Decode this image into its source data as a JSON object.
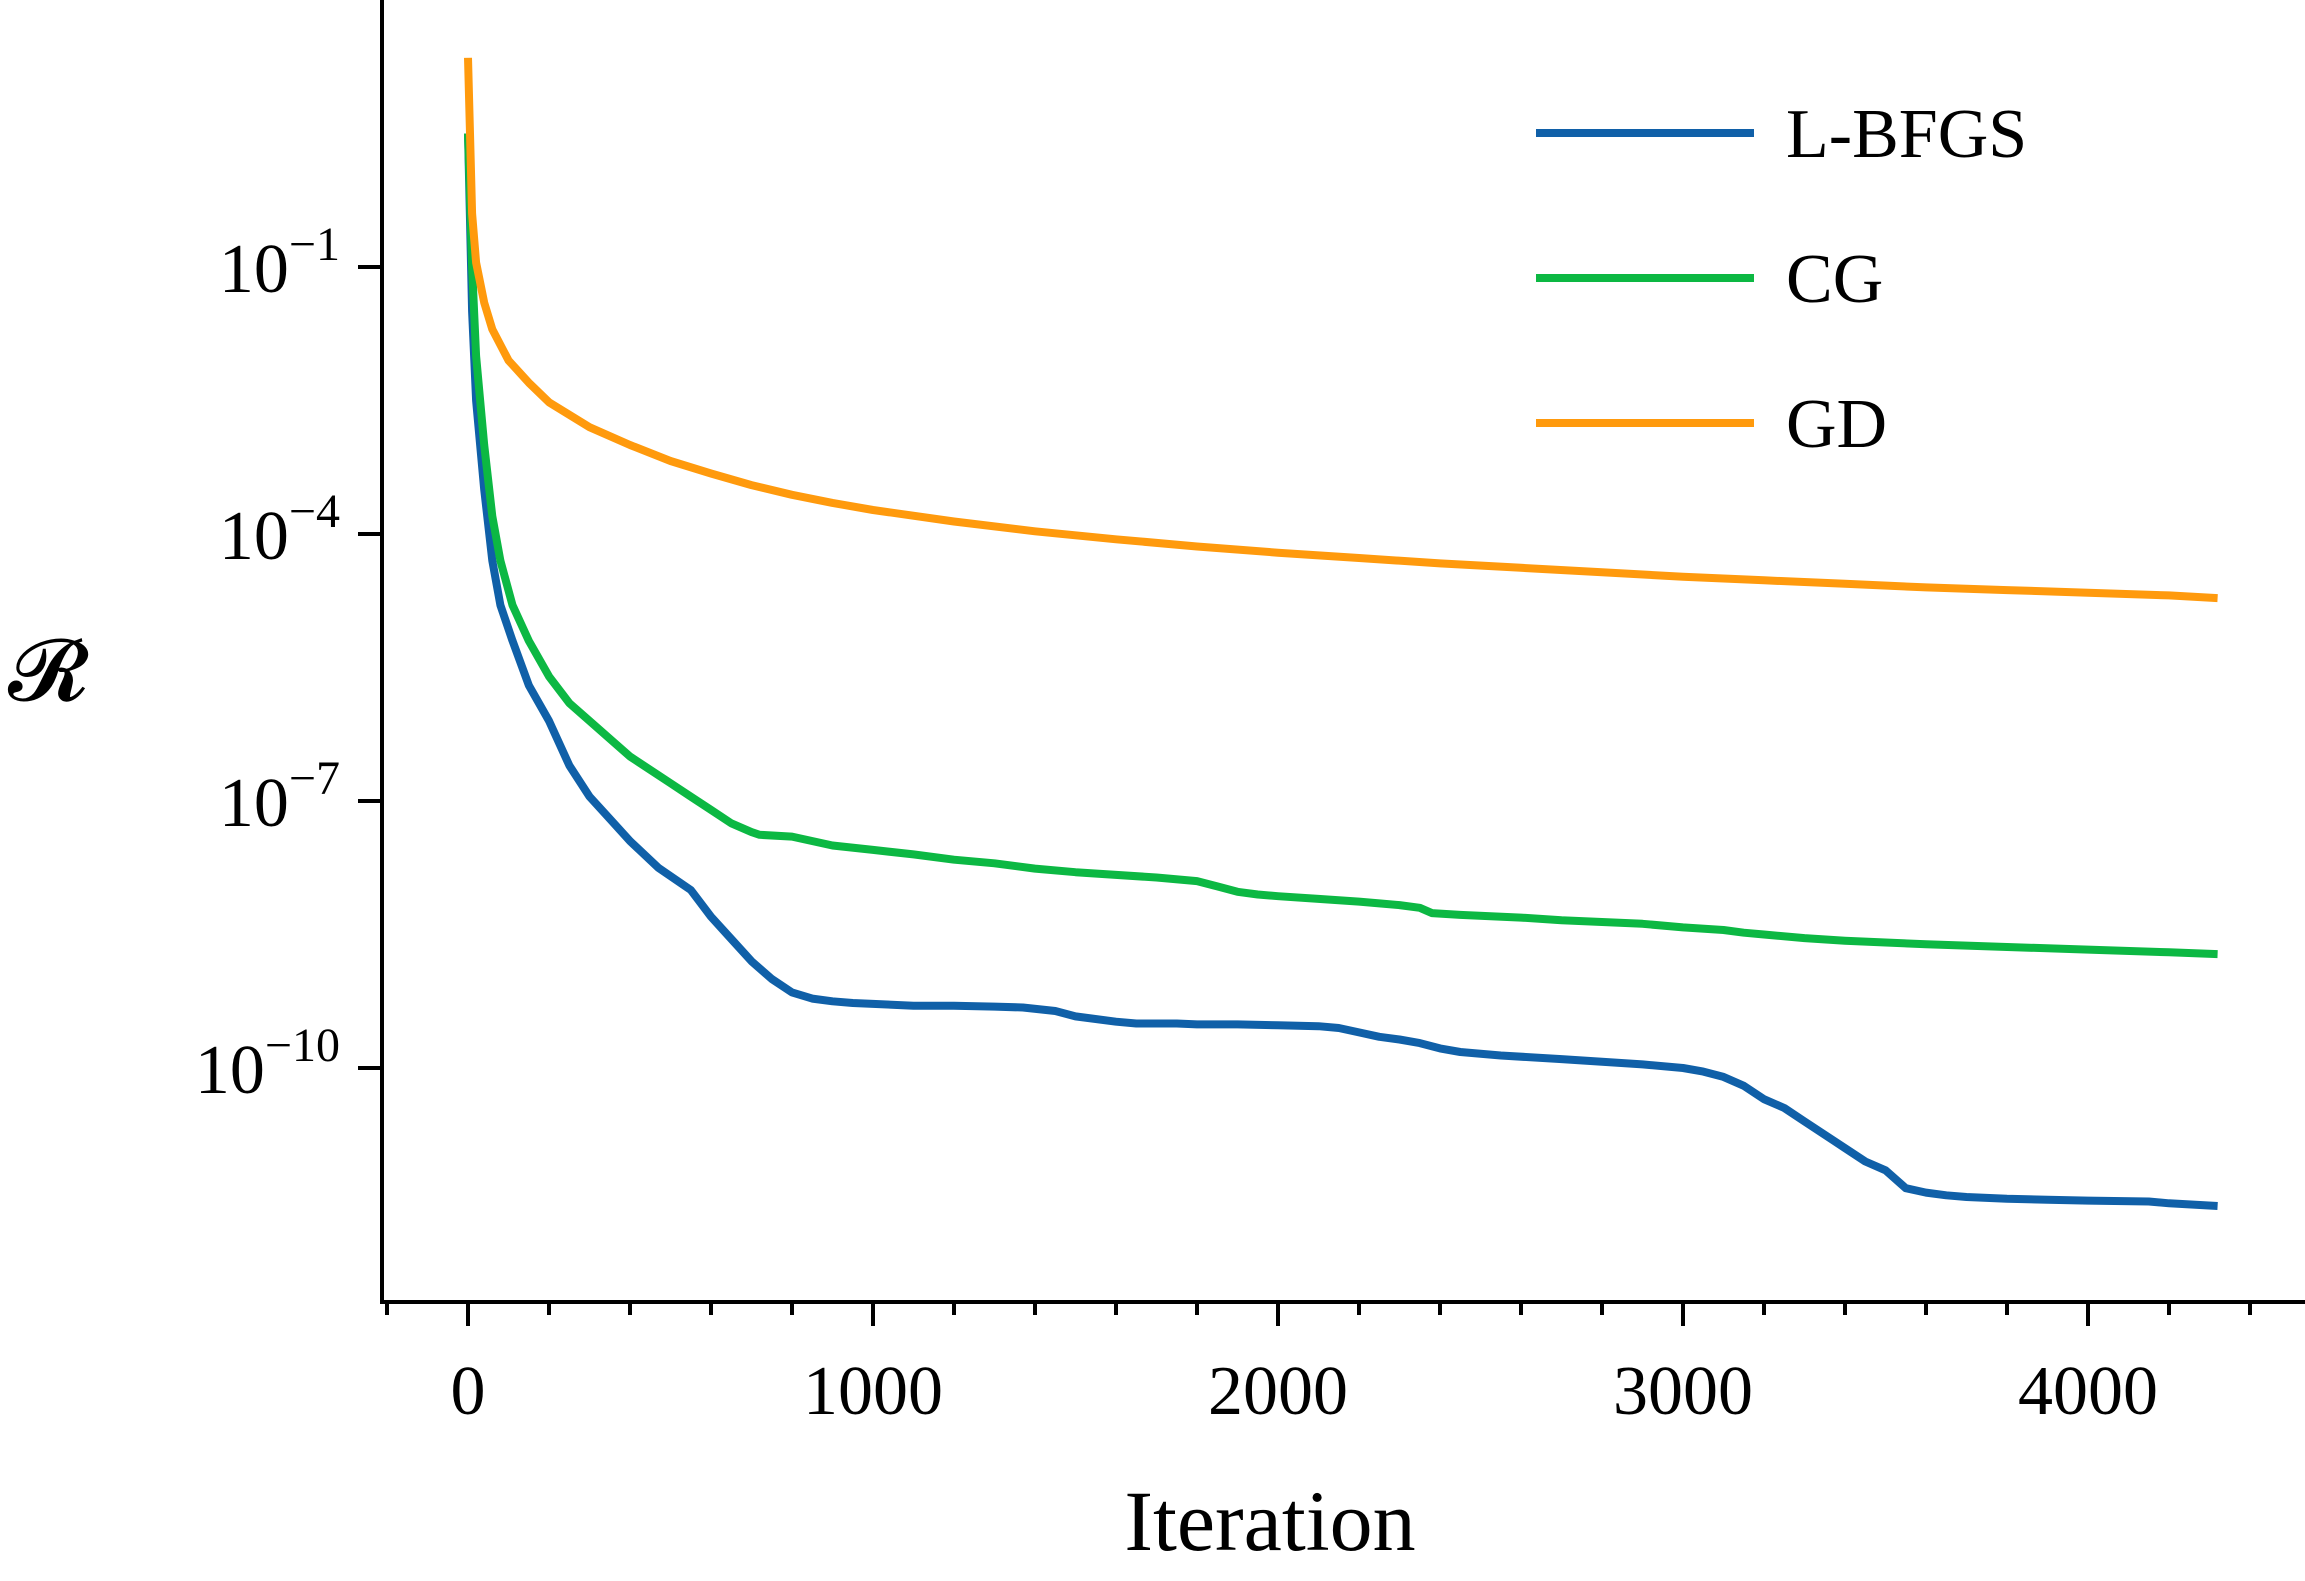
{
  "chart_data": {
    "type": "line",
    "title": "",
    "xlabel": "Iteration",
    "ylabel": "𝓡",
    "xlim": [
      -200,
      4400
    ],
    "ylim_log10": [
      -13.3,
      2.7
    ],
    "yscale": "log",
    "grid": false,
    "legend_position": "top-right",
    "x_ticks": [
      0,
      1000,
      2000,
      3000,
      4000
    ],
    "x_tick_labels": [
      "0",
      "1000",
      "2000",
      "3000",
      "4000"
    ],
    "x_minor_step": 200,
    "y_ticks_log10": [
      -1,
      -4,
      -7,
      -10
    ],
    "y_tick_labels": [
      {
        "base": "10",
        "exp": "−1"
      },
      {
        "base": "10",
        "exp": "−4"
      },
      {
        "base": "10",
        "exp": "−7"
      },
      {
        "base": "10",
        "exp": "−10"
      }
    ],
    "series": [
      {
        "name": "L-BFGS",
        "color": "#1060a8",
        "x": [
          0,
          10,
          20,
          40,
          60,
          80,
          110,
          150,
          200,
          250,
          300,
          350,
          400,
          470,
          550,
          600,
          650,
          700,
          750,
          800,
          850,
          900,
          950,
          1000,
          1100,
          1200,
          1300,
          1370,
          1450,
          1500,
          1600,
          1650,
          1750,
          1800,
          1900,
          2000,
          2100,
          2150,
          2200,
          2250,
          2300,
          2350,
          2400,
          2450,
          2550,
          2700,
          2800,
          2900,
          3000,
          3050,
          3100,
          3150,
          3200,
          3250,
          3300,
          3400,
          3450,
          3500,
          3550,
          3600,
          3650,
          3700,
          3800,
          3900,
          4000,
          4150,
          4200,
          4320
        ],
        "log10_y": [
          0.5,
          -1.5,
          -2.5,
          -3.5,
          -4.3,
          -4.8,
          -5.2,
          -5.7,
          -6.1,
          -6.6,
          -6.95,
          -7.2,
          -7.45,
          -7.75,
          -8.0,
          -8.3,
          -8.55,
          -8.8,
          -9.0,
          -9.15,
          -9.22,
          -9.25,
          -9.27,
          -9.28,
          -9.3,
          -9.3,
          -9.31,
          -9.32,
          -9.36,
          -9.42,
          -9.48,
          -9.5,
          -9.5,
          -9.51,
          -9.51,
          -9.52,
          -9.53,
          -9.55,
          -9.6,
          -9.65,
          -9.68,
          -9.72,
          -9.78,
          -9.82,
          -9.86,
          -9.9,
          -9.93,
          -9.96,
          -10.0,
          -10.04,
          -10.1,
          -10.2,
          -10.35,
          -10.45,
          -10.6,
          -10.9,
          -11.05,
          -11.15,
          -11.35,
          -11.4,
          -11.43,
          -11.45,
          -11.47,
          -11.48,
          -11.49,
          -11.5,
          -11.52,
          -11.55
        ]
      },
      {
        "name": "CG",
        "color": "#0cb843",
        "x": [
          0,
          10,
          20,
          40,
          60,
          80,
          110,
          150,
          200,
          250,
          300,
          350,
          400,
          500,
          550,
          600,
          650,
          700,
          720,
          800,
          900,
          1000,
          1100,
          1200,
          1300,
          1400,
          1500,
          1700,
          1800,
          1850,
          1900,
          1950,
          2000,
          2100,
          2200,
          2250,
          2300,
          2350,
          2380,
          2450,
          2600,
          2700,
          2800,
          2900,
          3000,
          3100,
          3150,
          3200,
          3300,
          3400,
          3500,
          3600,
          3800,
          4000,
          4200,
          4320
        ],
        "log10_y": [
          0.5,
          -1.0,
          -2.0,
          -3.0,
          -3.8,
          -4.3,
          -4.8,
          -5.2,
          -5.6,
          -5.9,
          -6.1,
          -6.3,
          -6.5,
          -6.8,
          -6.95,
          -7.1,
          -7.25,
          -7.35,
          -7.38,
          -7.4,
          -7.5,
          -7.55,
          -7.6,
          -7.66,
          -7.7,
          -7.76,
          -7.8,
          -7.86,
          -7.9,
          -7.96,
          -8.02,
          -8.05,
          -8.07,
          -8.1,
          -8.13,
          -8.15,
          -8.17,
          -8.2,
          -8.26,
          -8.28,
          -8.31,
          -8.34,
          -8.36,
          -8.38,
          -8.42,
          -8.45,
          -8.48,
          -8.5,
          -8.54,
          -8.57,
          -8.59,
          -8.61,
          -8.64,
          -8.67,
          -8.7,
          -8.72
        ]
      },
      {
        "name": "GD",
        "color": "#ff9a0d",
        "x": [
          0,
          5,
          10,
          20,
          40,
          60,
          100,
          150,
          200,
          300,
          400,
          500,
          600,
          700,
          800,
          900,
          1000,
          1200,
          1400,
          1600,
          1800,
          2000,
          2200,
          2400,
          2600,
          2800,
          3000,
          3200,
          3400,
          3600,
          3800,
          4000,
          4200,
          4320
        ],
        "log10_y": [
          1.35,
          0.5,
          -0.4,
          -0.95,
          -1.4,
          -1.7,
          -2.05,
          -2.3,
          -2.52,
          -2.8,
          -3.0,
          -3.18,
          -3.32,
          -3.45,
          -3.56,
          -3.65,
          -3.73,
          -3.86,
          -3.97,
          -4.06,
          -4.14,
          -4.21,
          -4.27,
          -4.33,
          -4.38,
          -4.43,
          -4.48,
          -4.52,
          -4.56,
          -4.6,
          -4.63,
          -4.66,
          -4.69,
          -4.72
        ]
      }
    ]
  }
}
